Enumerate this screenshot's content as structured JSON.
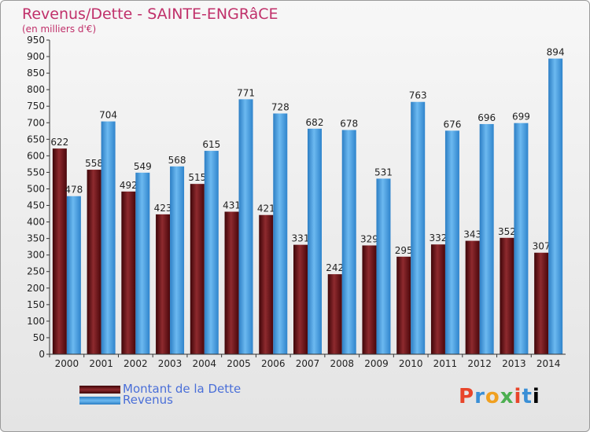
{
  "header": {
    "title": "Revenus/Dette - SAINTE-ENGRâCE",
    "subtitle": "(en milliers d'€)"
  },
  "legend": {
    "items": [
      {
        "label": "Montant de la Dette",
        "color": "#6b0f12"
      },
      {
        "label": "Revenus",
        "color": "#3f9be0"
      }
    ]
  },
  "logo": {
    "text": "Proxiti"
  },
  "chart_data": {
    "type": "bar",
    "categories": [
      "2000",
      "2001",
      "2002",
      "2003",
      "2004",
      "2005",
      "2006",
      "2007",
      "2008",
      "2009",
      "2010",
      "2011",
      "2012",
      "2013",
      "2014"
    ],
    "series": [
      {
        "name": "Montant de la Dette",
        "color": "#6b0f12",
        "values": [
          622,
          558,
          492,
          423,
          515,
          431,
          421,
          331,
          242,
          329,
          295,
          332,
          343,
          352,
          307
        ]
      },
      {
        "name": "Revenus",
        "color": "#3f9be0",
        "values": [
          478,
          704,
          549,
          568,
          615,
          771,
          728,
          682,
          678,
          531,
          763,
          676,
          696,
          699,
          894
        ]
      }
    ],
    "ylim": [
      0,
      950
    ],
    "ytick_step": 50,
    "grid": false,
    "legend_position": "bottom-left"
  }
}
